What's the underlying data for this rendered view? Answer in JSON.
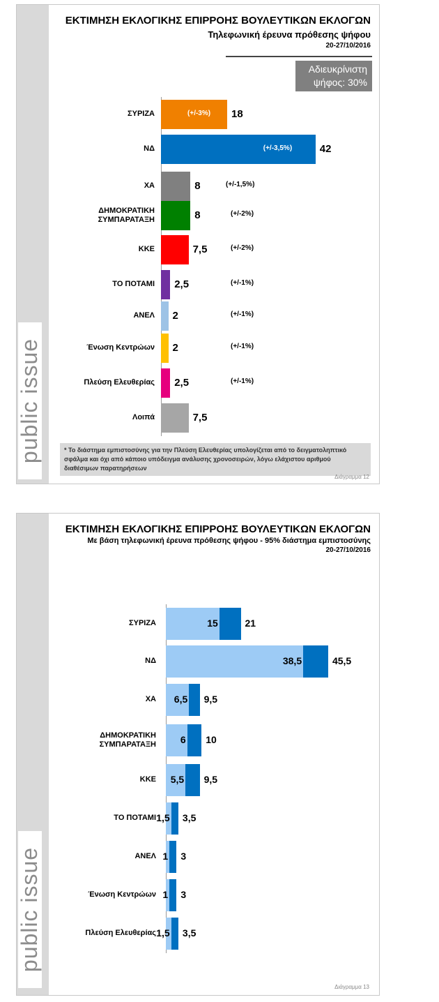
{
  "brand": "public issue",
  "chart_data": [
    {
      "type": "bar",
      "orientation": "horizontal",
      "title": "ΕΚΤΙΜΗΣΗ ΕΚΛΟΓΙΚΗΣ ΕΠΙΡΡΟΗΣ ΒΟΥΛΕΥΤΙΚΩΝ ΕΚΛΟΓΩΝ",
      "subtitle": "Τηλεφωνική έρευνα πρόθεσης ψήφου",
      "date": "20-27/10/2016",
      "undecided_label": "Αδιευκρίνιστη ψήφος: 30%",
      "categories": [
        "ΣΥΡΙΖΑ",
        "ΝΔ",
        "ΧΑ",
        "ΔΗΜΟΚΡΑΤΙΚΗ ΣΥΜΠΑΡΑΤΑΞΗ",
        "ΚΚΕ",
        "ΤΟ ΠΟΤΑΜΙ",
        "ΑΝΕΛ",
        "Ένωση Κεντρώων",
        "Πλεύση Ελευθερίας",
        "Λοιπά"
      ],
      "values": [
        18,
        42,
        8,
        8,
        7.5,
        2.5,
        2,
        2,
        2.5,
        7.5
      ],
      "value_labels": [
        "18",
        "42",
        "8",
        "8",
        "7,5",
        "2,5",
        "2",
        "2",
        "2,5",
        "7,5"
      ],
      "error_labels": [
        "(+/-3%)",
        "(+/-3,5%)",
        "(+/-1,5%)",
        "(+/-2%)",
        "(+/-2%)",
        "(+/-1%)",
        "(+/-1%)",
        "(+/-1%)",
        "(+/-1%)",
        ""
      ],
      "colors": [
        "#f08000",
        "#0070c0",
        "#808080",
        "#008000",
        "#ff0000",
        "#7030a0",
        "#9dc3e6",
        "#ffc000",
        "#e6007e",
        "#a6a6a6"
      ],
      "xlim": [
        0,
        50
      ],
      "grid": false,
      "footnote": "* Το διάστημα εμπιστοσύνης για την Πλεύση Ελευθερίας υπολογίζεται από το δειγματοληπτικό σφάλμα και όχι από κάποιο υπόδειγμα ανάλυσης χρονοσειρών, λόγω ελάχιστου αριθμού διαθέσιμων παρατηρήσεων",
      "figure_label": "Διάγραμμα 12"
    },
    {
      "type": "bar",
      "orientation": "horizontal",
      "title": "ΕΚΤΙΜΗΣΗ ΕΚΛΟΓΙΚΗΣ ΕΠΙΡΡΟΗΣ ΒΟΥΛΕΥΤΙΚΩΝ ΕΚΛΟΓΩΝ",
      "subtitle": "Με βάση τηλεφωνική έρευνα πρόθεσης ψήφου - 95% διάστημα εμπιστοσύνης",
      "date": "20-27/10/2016",
      "categories": [
        "ΣΥΡΙΖΑ",
        "ΝΔ",
        "ΧΑ",
        "ΔΗΜΟΚΡΑΤΙΚΗ ΣΥΜΠΑΡΑΤΑΞΗ",
        "ΚΚΕ",
        "ΤΟ ΠΟΤΑΜΙ",
        "ΑΝΕΛ",
        "Ένωση Κεντρώων",
        "Πλεύση Ελευθερίας"
      ],
      "series": [
        {
          "values": [
            15,
            38.5,
            6.5,
            6,
            5.5,
            1.5,
            1,
            1,
            1.5
          ],
          "labels": [
            "15",
            "38,5",
            "6,5",
            "6",
            "5,5",
            "1,5",
            "1",
            "1",
            "1,5"
          ],
          "color": "#9dcbf5"
        },
        {
          "values": [
            21,
            45.5,
            9.5,
            10,
            9.5,
            3.5,
            3,
            3,
            3.5
          ],
          "labels": [
            "21",
            "45,5",
            "9,5",
            "10",
            "9,5",
            "3,5",
            "3",
            "3",
            "3,5"
          ],
          "color": "#0070c0"
        }
      ],
      "xlim": [
        0,
        50
      ],
      "grid": false,
      "figure_label": "Διάγραμμα 13"
    }
  ]
}
